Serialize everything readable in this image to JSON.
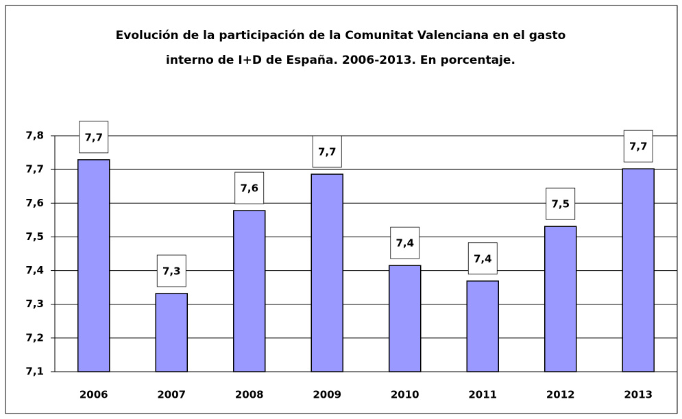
{
  "chart_data": {
    "type": "bar",
    "title": [
      "Evolución de la participación de la Comunitat Valenciana en el gasto",
      "interno de I+D de España. 2006-2013. En porcentaje."
    ],
    "categories": [
      "2006",
      "2007",
      "2008",
      "2009",
      "2010",
      "2011",
      "2012",
      "2013"
    ],
    "values": [
      7.729,
      7.332,
      7.578,
      7.686,
      7.415,
      7.369,
      7.531,
      7.702
    ],
    "value_labels": [
      "7,7",
      "7,3",
      "7,6",
      "7,7",
      "7,4",
      "7,4",
      "7,5",
      "7,7"
    ],
    "color": "#9999ff",
    "ylim": [
      7.1,
      7.8
    ],
    "yticks": [
      {
        "value": 7.1,
        "label": "7,1"
      },
      {
        "value": 7.2,
        "label": "7,2"
      },
      {
        "value": 7.3,
        "label": "7,3"
      },
      {
        "value": 7.4,
        "label": "7,4"
      },
      {
        "value": 7.5,
        "label": "7,5"
      },
      {
        "value": 7.6,
        "label": "7,6"
      },
      {
        "value": 7.7,
        "label": "7,7"
      },
      {
        "value": 7.8,
        "label": "7,8"
      }
    ],
    "grid": true
  }
}
